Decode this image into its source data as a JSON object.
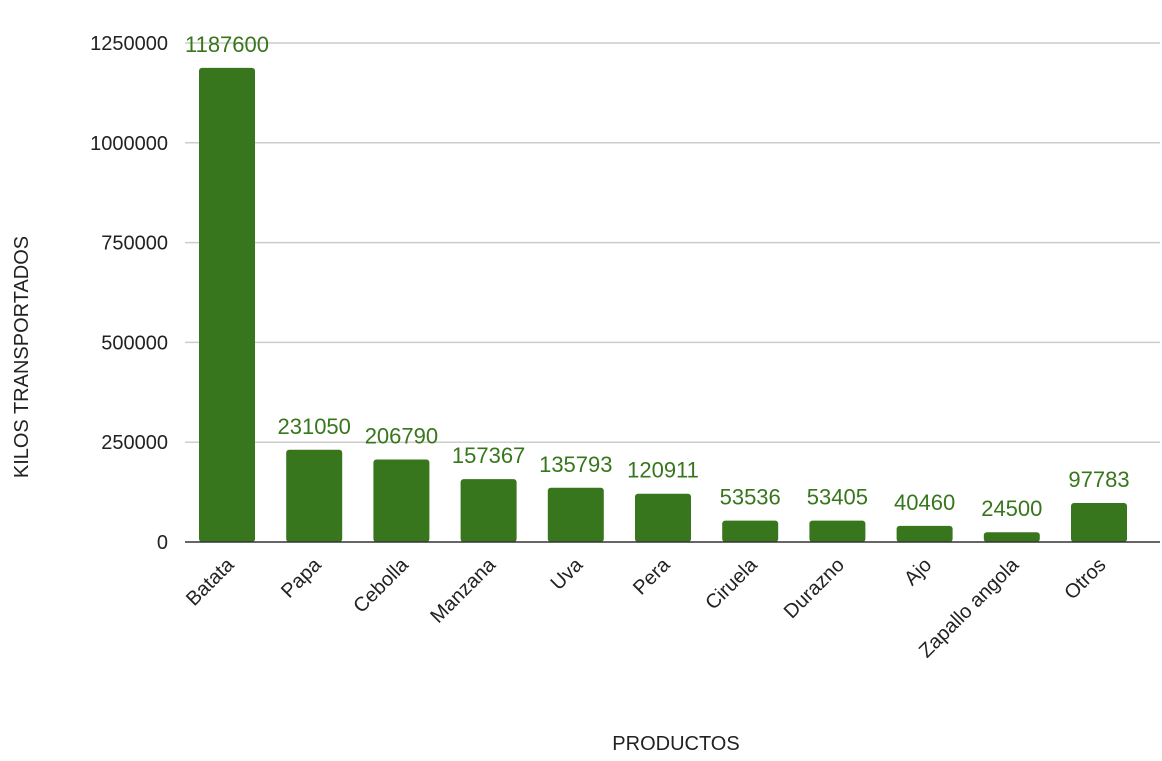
{
  "colors": {
    "bar": "#38761d",
    "data_label": "#38761d",
    "gridline": "#cccccc",
    "baseline": "#333333",
    "text": "#222222",
    "background": "#ffffff"
  },
  "chart_data": {
    "type": "bar",
    "title": "",
    "xlabel": "PRODUCTOS",
    "ylabel": "KILOS TRANSPORTADOS",
    "ylim": [
      0,
      1250000
    ],
    "yticks": [
      0,
      250000,
      500000,
      750000,
      1000000,
      1250000
    ],
    "grid": true,
    "legend": "none",
    "data_labels": true,
    "categories": [
      "Batata",
      "Papa",
      "Cebolla",
      "Manzana",
      "Uva",
      "Pera",
      "Ciruela",
      "Durazno",
      "Ajo",
      "Zapallo angola",
      "Otros"
    ],
    "values": [
      1187600,
      231050,
      206790,
      157367,
      135793,
      120911,
      53536,
      53405,
      40460,
      24500,
      97783
    ]
  }
}
